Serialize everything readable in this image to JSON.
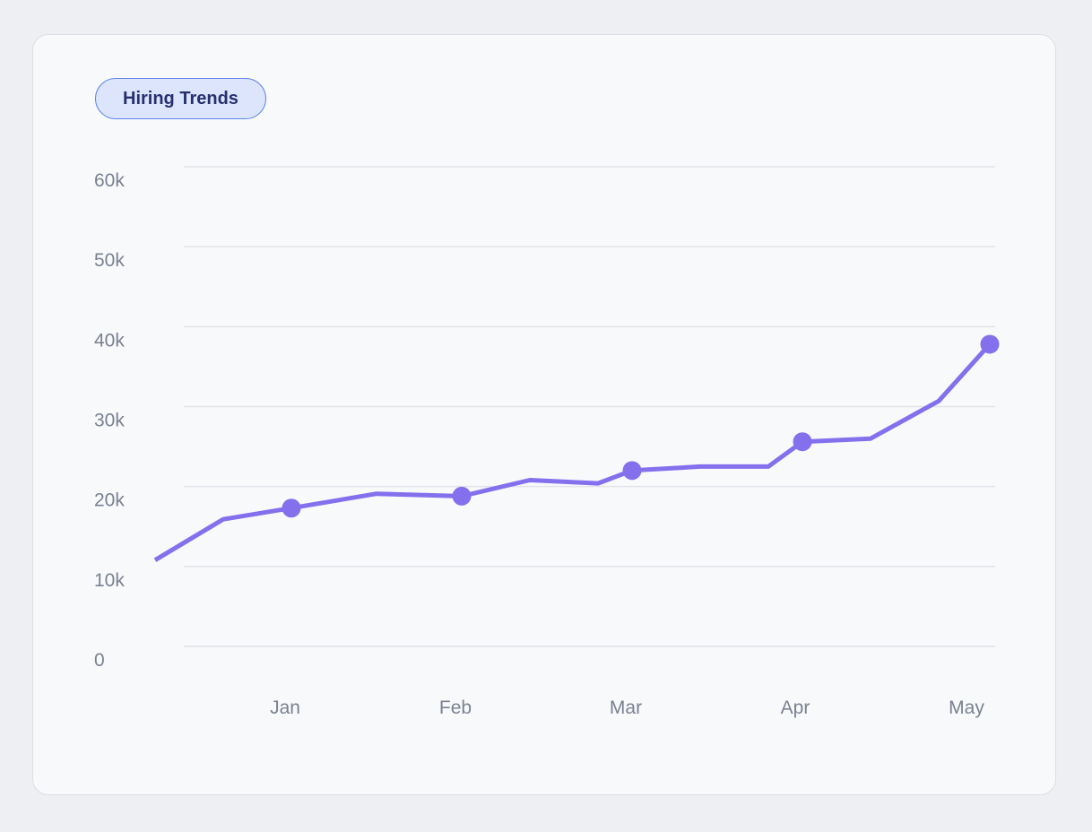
{
  "card": {
    "badge_label": "Hiring Trends"
  },
  "colors": {
    "line": "#8470ed",
    "badge_bg": "#dde5fd",
    "badge_border": "#5f86ea",
    "badge_text": "#27306e",
    "grid": "#e1e3e8",
    "tick_text": "#7a8190"
  },
  "chart_data": {
    "type": "line",
    "title": "Hiring Trends",
    "xlabel": "",
    "ylabel": "",
    "x_ticks": [
      "Jan",
      "Feb",
      "Mar",
      "Apr",
      "May"
    ],
    "y_ticks": [
      "0",
      "10k",
      "20k",
      "30k",
      "40k",
      "50k",
      "60k"
    ],
    "ylim": [
      0,
      60000
    ],
    "grid": true,
    "series": [
      {
        "x": [
          0.2,
          0.6,
          1.0,
          1.5,
          2.0,
          2.4,
          2.8,
          3.0,
          3.4,
          3.8,
          4.0,
          4.4,
          4.8,
          5.1
        ],
        "y": [
          10800,
          15900,
          17300,
          19100,
          18800,
          20800,
          20400,
          22000,
          22500,
          22500,
          25600,
          26000,
          30700,
          37800
        ],
        "markers_at_index": [
          2,
          4,
          7,
          10,
          13
        ]
      }
    ]
  }
}
